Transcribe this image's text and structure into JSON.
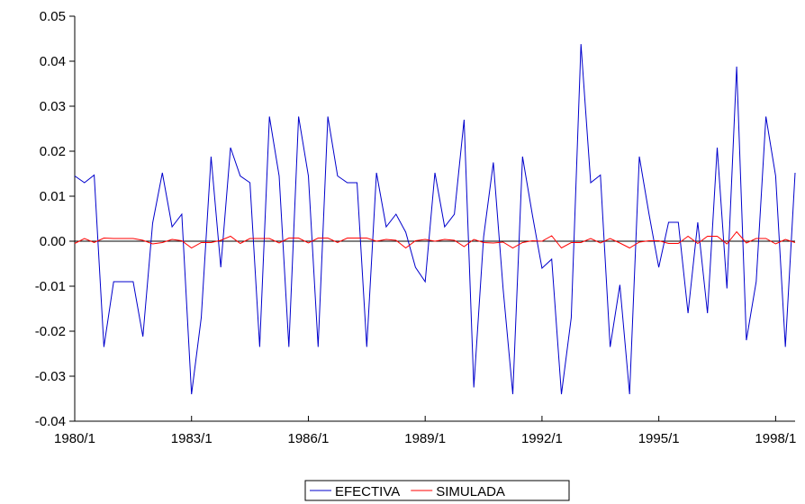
{
  "chart_data": {
    "type": "line",
    "title": "",
    "xlabel": "",
    "ylabel": "",
    "x": [
      "1980/1",
      "1980/2",
      "1980/3",
      "1980/4",
      "1981/1",
      "1981/2",
      "1981/3",
      "1981/4",
      "1982/1",
      "1982/2",
      "1982/3",
      "1982/4",
      "1983/1",
      "1983/2",
      "1983/3",
      "1983/4",
      "1984/1",
      "1984/2",
      "1984/3",
      "1984/4",
      "1985/1",
      "1985/2",
      "1985/3",
      "1985/4",
      "1986/1",
      "1986/2",
      "1986/3",
      "1986/4",
      "1987/1",
      "1987/2",
      "1987/3",
      "1987/4",
      "1988/1",
      "1988/2",
      "1988/3",
      "1988/4",
      "1989/1",
      "1989/2",
      "1989/3",
      "1989/4",
      "1990/1",
      "1990/2",
      "1990/3",
      "1990/4",
      "1991/1",
      "1991/2",
      "1991/3",
      "1991/4",
      "1992/1",
      "1992/2",
      "1992/3",
      "1992/4",
      "1993/1",
      "1993/2",
      "1993/3",
      "1993/4",
      "1994/1",
      "1994/2",
      "1994/3",
      "1994/4",
      "1995/1",
      "1995/2",
      "1995/3",
      "1995/4",
      "1996/1",
      "1996/2",
      "1996/3",
      "1996/4",
      "1997/1",
      "1997/2",
      "1997/3",
      "1997/4",
      "1998/1",
      "1998/2",
      "1998/3"
    ],
    "x_tick_labels": [
      "1980/1",
      "1983/1",
      "1986/1",
      "1989/1",
      "1992/1",
      "1995/1",
      "1998/1"
    ],
    "x_tick_every": 12,
    "y_tick_labels": [
      "0.05",
      "0.04",
      "0.03",
      "0.02",
      "0.01",
      "0.00",
      "-0.01",
      "-0.02",
      "-0.03",
      "-0.04"
    ],
    "ylim": [
      -0.04,
      0.05
    ],
    "yticks": [
      0.05,
      0.04,
      0.03,
      0.02,
      0.01,
      0.0,
      -0.01,
      -0.02,
      -0.03,
      -0.04
    ],
    "grid": false,
    "legend_position": "bottom-center",
    "series": [
      {
        "name": "EFECTIVA",
        "color": "#0000cc",
        "values": [
          0.0145,
          0.013,
          0.0147,
          -0.0235,
          -0.009,
          -0.009,
          -0.009,
          -0.0212,
          0.004,
          0.0152,
          0.0032,
          0.006,
          -0.034,
          -0.017,
          0.0188,
          -0.0058,
          0.0208,
          0.0145,
          0.013,
          -0.0235,
          0.0277,
          0.0145,
          -0.0235,
          0.0277,
          0.0145,
          -0.0235,
          0.0277,
          0.0145,
          0.013,
          0.013,
          -0.0235,
          0.0152,
          0.0032,
          0.006,
          0.002,
          -0.0058,
          -0.009,
          0.0152,
          0.0032,
          0.006,
          0.027,
          -0.0325,
          0.001,
          0.0175,
          -0.0105,
          -0.034,
          0.0188,
          0.006,
          -0.006,
          -0.004,
          -0.034,
          -0.017,
          0.0438,
          0.013,
          0.0147,
          -0.0235,
          -0.0097,
          -0.034,
          0.0188,
          0.006,
          -0.0058,
          0.0042,
          0.0042,
          -0.016,
          0.0042,
          -0.016,
          0.0208,
          -0.0105,
          0.0388,
          -0.022,
          -0.009,
          0.0277,
          0.0145,
          -0.0235,
          0.0152
        ]
      },
      {
        "name": "SIMULADA",
        "color": "#ff0000",
        "values": [
          -0.0005,
          0.0006,
          -0.0003,
          0.0007,
          0.0006,
          0.0006,
          0.0006,
          0.0002,
          -0.0006,
          -0.0003,
          0.0004,
          0.0001,
          -0.0015,
          -0.0003,
          -0.0003,
          0.0002,
          0.0011,
          -0.0005,
          0.0006,
          0.0006,
          0.0006,
          -0.0004,
          0.0007,
          0.0007,
          -0.0004,
          0.0007,
          0.0007,
          -0.0003,
          0.0007,
          0.0007,
          0.0007,
          0.0,
          0.0004,
          0.0002,
          -0.0015,
          0.0001,
          0.0004,
          0.0,
          0.0004,
          0.0002,
          -0.0012,
          0.0004,
          -0.0003,
          -0.0004,
          -0.0002,
          -0.0015,
          -0.0003,
          0.0001,
          0.0,
          0.0012,
          -0.0015,
          -0.0003,
          -0.0003,
          0.0006,
          -0.0004,
          0.0006,
          -0.0004,
          -0.0015,
          -0.0002,
          0.0001,
          0.0001,
          -0.0005,
          -0.0005,
          0.0011,
          -0.0005,
          0.0011,
          0.0011,
          -0.0006,
          0.0021,
          -0.0004,
          0.0006,
          0.0006,
          -0.0006,
          0.0004,
          -0.0003
        ]
      }
    ]
  }
}
